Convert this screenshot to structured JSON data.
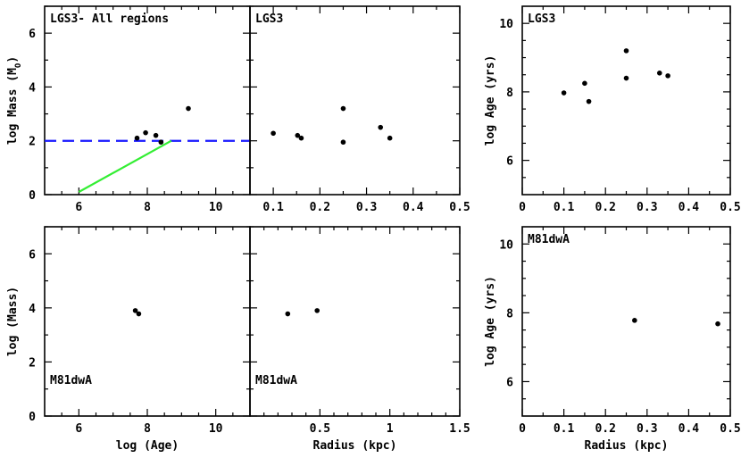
{
  "chart_data": [
    {
      "id": "p1",
      "type": "scatter",
      "title": "LGS3- All regions",
      "title_pos": "top-left",
      "xlabel": "",
      "ylabel": "log Mass (M",
      "ylabel_sub": "O",
      "ylabel_end": ")",
      "xlim": [
        5,
        11
      ],
      "ylim": [
        0,
        7
      ],
      "xticks": [
        6,
        8,
        10
      ],
      "xminor": [
        5.5,
        6.5,
        7,
        7.5,
        8.5,
        9,
        9.5,
        10.5
      ],
      "yticks": [
        0,
        2,
        4,
        6
      ],
      "yminor": [
        1,
        3,
        5,
        7
      ],
      "show_xticklabels": true,
      "show_yticklabels": true,
      "points": [
        [
          7.7,
          2.1
        ],
        [
          7.95,
          2.3
        ],
        [
          8.25,
          2.2
        ],
        [
          8.4,
          1.95
        ],
        [
          9.2,
          3.2
        ]
      ],
      "hline": {
        "y": 2.0,
        "color": "#1a1aff",
        "style": "dashed"
      },
      "line": {
        "x": [
          6.0,
          8.7
        ],
        "y": [
          0.1,
          2.0
        ],
        "color": "#33ee33"
      }
    },
    {
      "id": "p2",
      "type": "scatter",
      "title": "LGS3",
      "title_pos": "top-left",
      "xlabel": "",
      "ylabel": "",
      "xlim": [
        0.05,
        0.5
      ],
      "ylim": [
        0,
        7
      ],
      "xticks": [
        0.1,
        0.2,
        0.3,
        0.4,
        0.5
      ],
      "xminor": [
        0.05,
        0.15,
        0.25,
        0.35,
        0.45
      ],
      "yticks": [
        0,
        2,
        4,
        6
      ],
      "yminor": [
        1,
        3,
        5,
        7
      ],
      "show_xticklabels": true,
      "show_yticklabels": false,
      "points": [
        [
          0.1,
          2.28
        ],
        [
          0.152,
          2.2
        ],
        [
          0.16,
          2.1
        ],
        [
          0.25,
          3.2
        ],
        [
          0.25,
          1.95
        ],
        [
          0.33,
          2.5
        ],
        [
          0.35,
          2.1
        ]
      ]
    },
    {
      "id": "p3",
      "type": "scatter",
      "title": "LGS3",
      "title_pos": "top-left",
      "xlabel": "",
      "ylabel": "log Age (yrs)",
      "xlim": [
        0,
        0.5
      ],
      "ylim": [
        5,
        10.5
      ],
      "xticks": [
        0,
        0.1,
        0.2,
        0.3,
        0.4,
        0.5
      ],
      "xminor": [
        0.05,
        0.15,
        0.25,
        0.35,
        0.45
      ],
      "yticks": [
        6,
        8,
        10
      ],
      "yminor": [
        5.5,
        6.5,
        7,
        7.5,
        8.5,
        9,
        9.5
      ],
      "show_xticklabels": true,
      "show_yticklabels": true,
      "points": [
        [
          0.1,
          7.97
        ],
        [
          0.15,
          8.25
        ],
        [
          0.16,
          7.72
        ],
        [
          0.25,
          9.2
        ],
        [
          0.25,
          8.4
        ],
        [
          0.33,
          8.55
        ],
        [
          0.35,
          8.47
        ]
      ]
    },
    {
      "id": "p4",
      "type": "scatter",
      "title": "M81dwA",
      "title_pos": "bottom-left",
      "xlabel": "log (Age)",
      "ylabel": "log (Mass)",
      "xlim": [
        5,
        11
      ],
      "ylim": [
        0,
        7
      ],
      "xticks": [
        6,
        8,
        10
      ],
      "xminor": [
        5.5,
        6.5,
        7,
        7.5,
        8.5,
        9,
        9.5,
        10.5
      ],
      "yticks": [
        0,
        2,
        4,
        6
      ],
      "yminor": [
        1,
        3,
        5,
        7
      ],
      "show_xticklabels": true,
      "show_yticklabels": true,
      "points": [
        [
          7.65,
          3.9
        ],
        [
          7.75,
          3.78
        ]
      ]
    },
    {
      "id": "p5",
      "type": "scatter",
      "title": "M81dwA",
      "title_pos": "bottom-left",
      "xlabel": "Radius (kpc)",
      "ylabel": "",
      "xlim": [
        0,
        1.5
      ],
      "ylim": [
        0,
        7
      ],
      "xticks": [
        0.5,
        1,
        1.5
      ],
      "xminor": [
        0.1,
        0.2,
        0.3,
        0.4,
        0.6,
        0.7,
        0.8,
        0.9,
        1.1,
        1.2,
        1.3,
        1.4
      ],
      "yticks": [
        0,
        2,
        4,
        6
      ],
      "yminor": [
        1,
        3,
        5,
        7
      ],
      "show_xticklabels": true,
      "show_yticklabels": false,
      "points": [
        [
          0.27,
          3.78
        ],
        [
          0.48,
          3.9
        ]
      ]
    },
    {
      "id": "p6",
      "type": "scatter",
      "title": "M81dwA",
      "title_pos": "top-left",
      "xlabel": "Radius (kpc)",
      "ylabel": "log Age (yrs)",
      "xlim": [
        0,
        0.5
      ],
      "ylim": [
        5,
        10.5
      ],
      "xticks": [
        0,
        0.1,
        0.2,
        0.3,
        0.4,
        0.5
      ],
      "xminor": [
        0.05,
        0.15,
        0.25,
        0.35,
        0.45
      ],
      "yticks": [
        6,
        8,
        10
      ],
      "yminor": [
        5.5,
        6.5,
        7,
        7.5,
        8.5,
        9,
        9.5
      ],
      "show_xticklabels": true,
      "show_yticklabels": true,
      "points": [
        [
          0.27,
          7.78
        ],
        [
          0.47,
          7.68
        ]
      ]
    }
  ]
}
